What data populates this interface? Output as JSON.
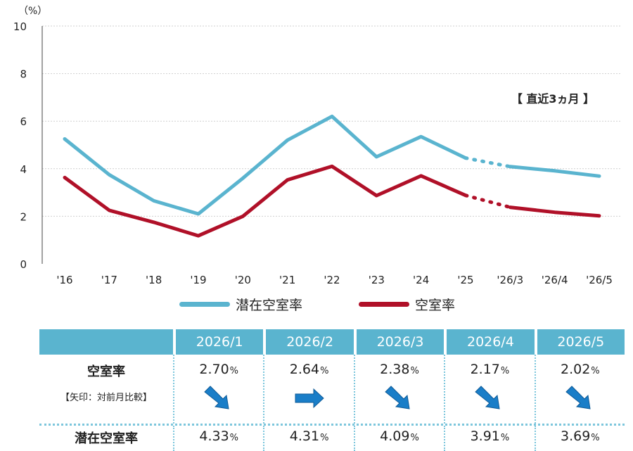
{
  "chart_data": {
    "type": "line",
    "unit_label": "（%）",
    "yticks": [
      "0",
      "2",
      "4",
      "6",
      "8",
      "10"
    ],
    "ylim": [
      0,
      10
    ],
    "categories": [
      "'16",
      "'17",
      "'18",
      "'19",
      "'20",
      "'21",
      "'22",
      "'23",
      "'24",
      "'25",
      "'26/3",
      "'26/4",
      "'26/5"
    ],
    "annotation": "【 直近3ヵ月 】",
    "series": [
      {
        "name": "潜在空室率",
        "color": "#5ab4cf",
        "values": [
          5.25,
          3.75,
          2.65,
          2.1,
          3.6,
          5.2,
          6.2,
          4.5,
          5.35,
          4.45,
          4.09,
          3.91,
          3.69
        ]
      },
      {
        "name": "空室率",
        "color": "#b01028",
        "values": [
          3.63,
          2.25,
          1.75,
          1.18,
          2.0,
          3.53,
          4.1,
          2.87,
          3.7,
          2.88,
          2.38,
          2.17,
          2.02
        ]
      }
    ],
    "dotted_segment": {
      "from_index": 9,
      "to_index": 10
    }
  },
  "table": {
    "months": [
      "2026/1",
      "2026/2",
      "2026/3",
      "2026/4",
      "2026/5"
    ],
    "vacancy_label": "空室率",
    "arrow_note": "【矢印：対前月比較】",
    "vacancy_values": [
      "2.70",
      "2.64",
      "2.38",
      "2.17",
      "2.02"
    ],
    "arrow_directions": [
      "down",
      "flat",
      "down",
      "down",
      "down"
    ],
    "potential_label": "潜在空室率",
    "potential_values": [
      "4.33",
      "4.31",
      "4.09",
      "3.91",
      "3.69"
    ],
    "pct_sign": "%"
  },
  "colors": {
    "arrow": "#1a7ec8",
    "header": "#5ab4cf",
    "axis_text": "#222222",
    "grid": "#cfcfcf"
  }
}
